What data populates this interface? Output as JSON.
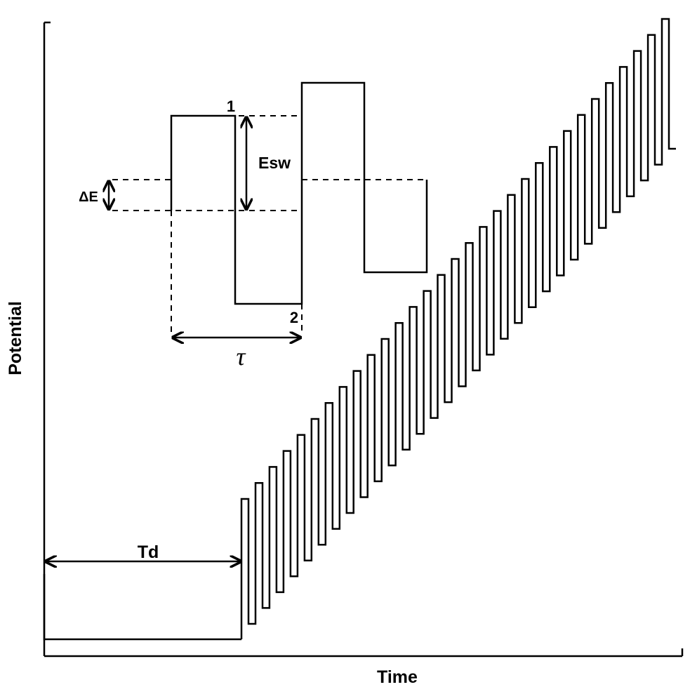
{
  "axes": {
    "x_label": "Time",
    "y_label": "Potential"
  },
  "annotations": {
    "delay_label": "Td",
    "step_label": "ΔE",
    "amplitude_label": "Esw",
    "period_label": "τ",
    "point_1_label": "1",
    "point_2_label": "2"
  },
  "waveform": {
    "cycle_count": 31,
    "delay_fraction": 0.31
  },
  "colors": {
    "line": "#000000",
    "background": "#ffffff"
  }
}
